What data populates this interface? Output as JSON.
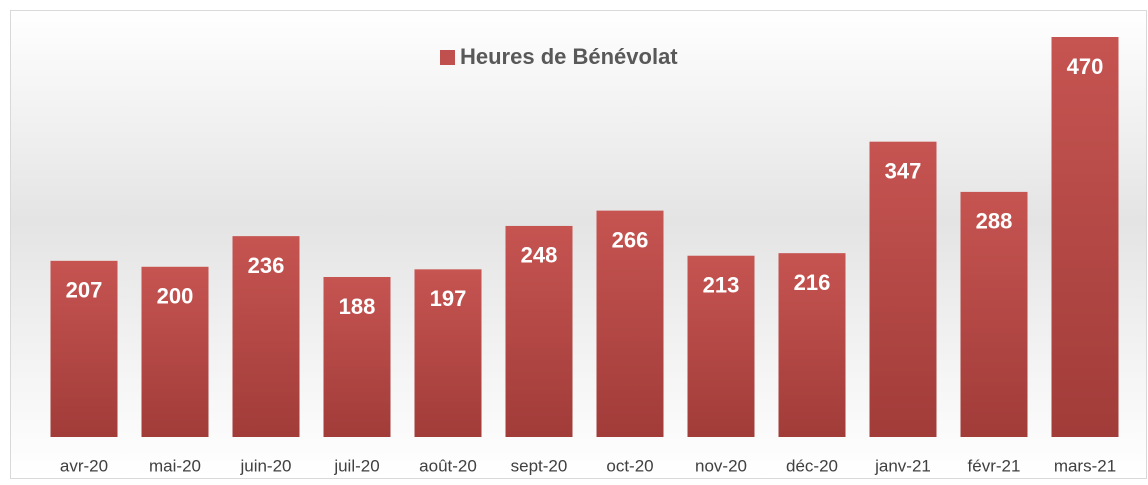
{
  "chart_data": {
    "type": "bar",
    "categories": [
      "avr-20",
      "mai-20",
      "juin-20",
      "juil-20",
      "août-20",
      "sept-20",
      "oct-20",
      "nov-20",
      "déc-20",
      "janv-21",
      "févr-21",
      "mars-21"
    ],
    "series": [
      {
        "name": "Heures de Bénévolat",
        "color": "#c0504d",
        "values": [
          207,
          200,
          236,
          188,
          197,
          248,
          266,
          213,
          216,
          347,
          288,
          470
        ]
      }
    ],
    "legend": "top"
  }
}
